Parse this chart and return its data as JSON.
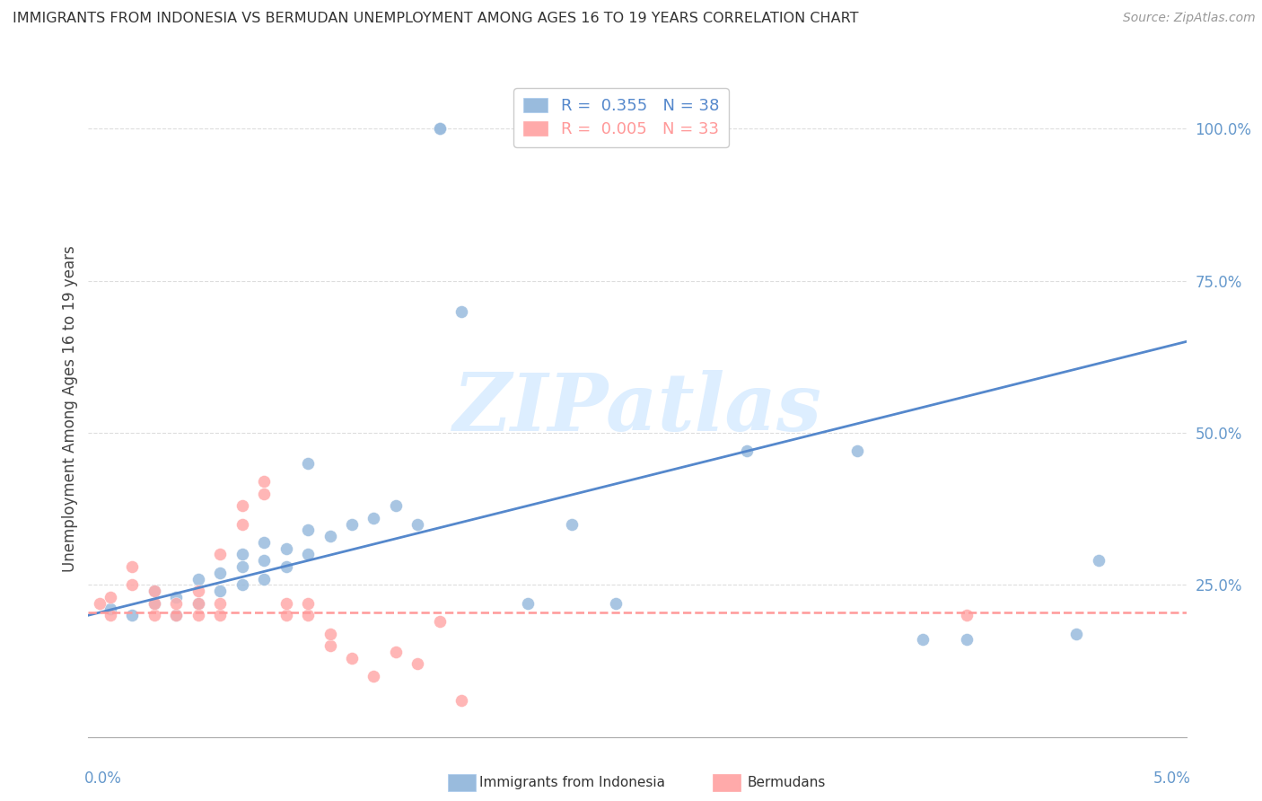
{
  "title": "IMMIGRANTS FROM INDONESIA VS BERMUDAN UNEMPLOYMENT AMONG AGES 16 TO 19 YEARS CORRELATION CHART",
  "source": "Source: ZipAtlas.com",
  "ylabel": "Unemployment Among Ages 16 to 19 years",
  "legend_label1": "Immigrants from Indonesia",
  "legend_label2": "Bermudans",
  "R1": "0.355",
  "N1": "38",
  "R2": "0.005",
  "N2": "33",
  "blue_color": "#99BBDD",
  "pink_color": "#FFAAAA",
  "blue_line_color": "#5588CC",
  "pink_line_color": "#FF9999",
  "watermark_color": "#DDEEFF",
  "grid_color": "#DDDDDD",
  "axis_color": "#AAAAAA",
  "tick_label_color": "#6699CC",
  "title_color": "#333333",
  "source_color": "#999999",
  "watermark": "ZIPatlas",
  "blue_scatter_x": [
    0.001,
    0.002,
    0.003,
    0.003,
    0.004,
    0.004,
    0.005,
    0.005,
    0.006,
    0.006,
    0.007,
    0.007,
    0.007,
    0.008,
    0.008,
    0.008,
    0.009,
    0.009,
    0.01,
    0.01,
    0.01,
    0.011,
    0.012,
    0.013,
    0.014,
    0.015,
    0.016,
    0.016,
    0.017,
    0.02,
    0.022,
    0.024,
    0.03,
    0.035,
    0.038,
    0.04,
    0.045,
    0.046
  ],
  "blue_scatter_y": [
    0.21,
    0.2,
    0.22,
    0.24,
    0.2,
    0.23,
    0.22,
    0.26,
    0.24,
    0.27,
    0.25,
    0.28,
    0.3,
    0.26,
    0.29,
    0.32,
    0.28,
    0.31,
    0.3,
    0.34,
    0.45,
    0.33,
    0.35,
    0.36,
    0.38,
    0.35,
    1.0,
    1.0,
    0.7,
    0.22,
    0.35,
    0.22,
    0.47,
    0.47,
    0.16,
    0.16,
    0.17,
    0.29
  ],
  "pink_scatter_x": [
    0.0005,
    0.001,
    0.001,
    0.002,
    0.002,
    0.003,
    0.003,
    0.003,
    0.004,
    0.004,
    0.005,
    0.005,
    0.005,
    0.006,
    0.006,
    0.006,
    0.007,
    0.007,
    0.008,
    0.008,
    0.009,
    0.009,
    0.01,
    0.01,
    0.011,
    0.011,
    0.012,
    0.013,
    0.014,
    0.015,
    0.016,
    0.017,
    0.04
  ],
  "pink_scatter_y": [
    0.22,
    0.2,
    0.23,
    0.25,
    0.28,
    0.2,
    0.22,
    0.24,
    0.2,
    0.22,
    0.2,
    0.22,
    0.24,
    0.2,
    0.22,
    0.3,
    0.35,
    0.38,
    0.4,
    0.42,
    0.2,
    0.22,
    0.2,
    0.22,
    0.15,
    0.17,
    0.13,
    0.1,
    0.14,
    0.12,
    0.19,
    0.06,
    0.2
  ],
  "blue_line_x": [
    0.0,
    0.05
  ],
  "blue_line_y": [
    0.2,
    0.65
  ],
  "pink_line_x": [
    0.0,
    0.05
  ],
  "pink_line_y": [
    0.205,
    0.205
  ],
  "xlim": [
    0.0,
    0.05
  ],
  "ylim": [
    0.0,
    1.08
  ],
  "yticks": [
    0.25,
    0.5,
    0.75,
    1.0
  ],
  "ytick_labels": [
    "25.0%",
    "50.0%",
    "75.0%",
    "100.0%"
  ],
  "xtick_positions": [
    0.0,
    0.01,
    0.02,
    0.03,
    0.04,
    0.05
  ],
  "marker_size": 100
}
